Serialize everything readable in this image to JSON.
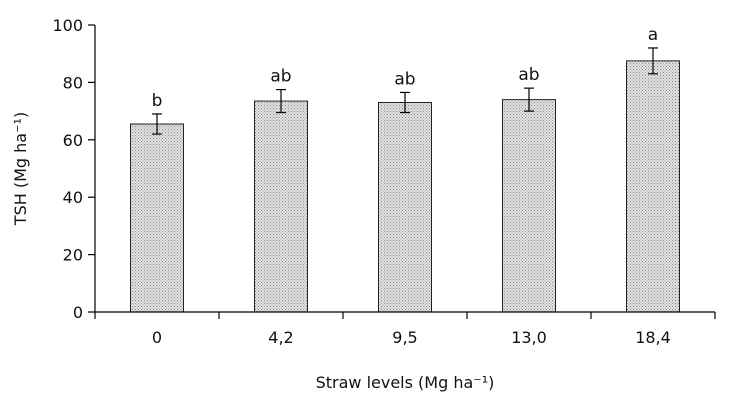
{
  "chart_data": {
    "type": "bar",
    "categories": [
      "0",
      "4,2",
      "9,5",
      "13,0",
      "18,4"
    ],
    "values": [
      65.5,
      73.5,
      73,
      74,
      87.5
    ],
    "error": [
      3.5,
      4,
      3.5,
      4,
      4.5
    ],
    "annotations": [
      "b",
      "ab",
      "ab",
      "ab",
      "a"
    ],
    "xlabel": "Straw levels (Mg ha⁻¹)",
    "ylabel": "TSH (Mg ha⁻¹)",
    "ylim": [
      0,
      100
    ],
    "yticks": [
      "0",
      "20",
      "40",
      "60",
      "80",
      "100"
    ],
    "grid": false,
    "bar_color": "#c4c4c4"
  }
}
